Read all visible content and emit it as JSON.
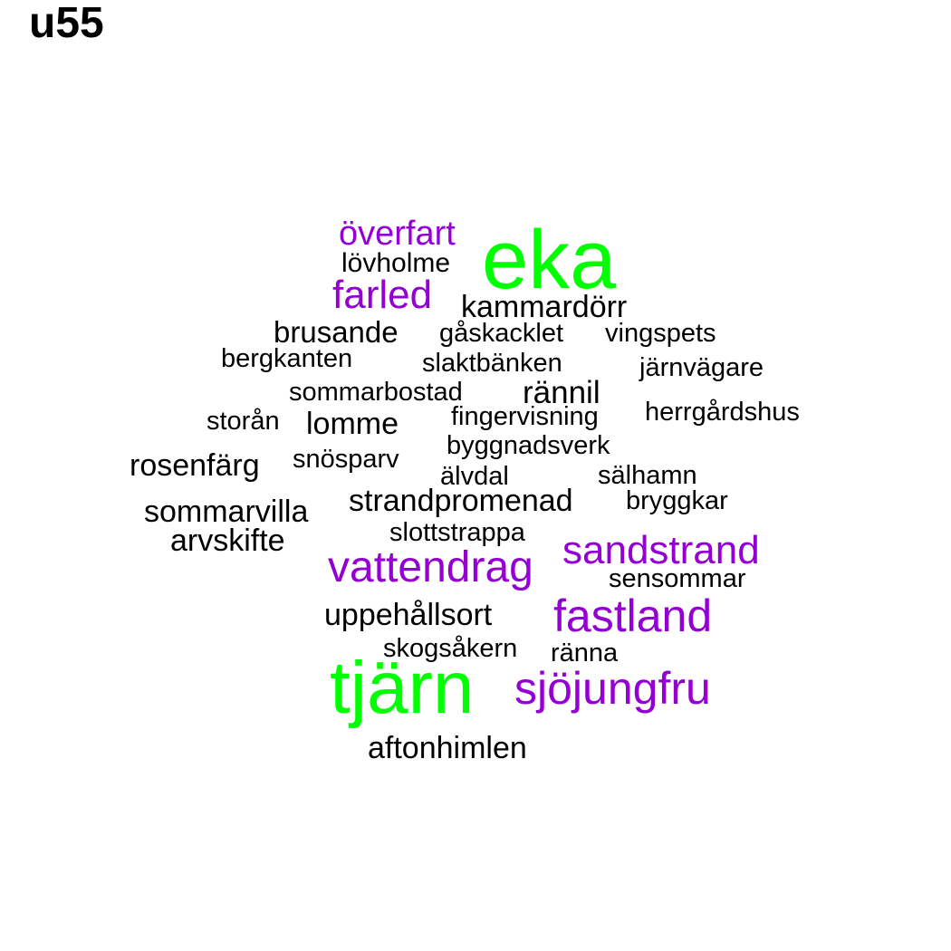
{
  "title": "u55",
  "colors": {
    "high": "#00ff00",
    "mid": "#9400d3",
    "low": "#000000"
  },
  "words": [
    {
      "text": "eka",
      "tier": "high"
    },
    {
      "text": "tjärn",
      "tier": "high"
    },
    {
      "text": "överfart",
      "tier": "mid"
    },
    {
      "text": "farled",
      "tier": "mid"
    },
    {
      "text": "vattendrag",
      "tier": "mid"
    },
    {
      "text": "sandstrand",
      "tier": "mid"
    },
    {
      "text": "fastland",
      "tier": "mid"
    },
    {
      "text": "sjöjungfru",
      "tier": "mid"
    },
    {
      "text": "lövholme",
      "tier": "low"
    },
    {
      "text": "kammardörr",
      "tier": "low"
    },
    {
      "text": "brusande",
      "tier": "low"
    },
    {
      "text": "gåskacklet",
      "tier": "low"
    },
    {
      "text": "vingspets",
      "tier": "low"
    },
    {
      "text": "bergkanten",
      "tier": "low"
    },
    {
      "text": "slaktbänken",
      "tier": "low"
    },
    {
      "text": "järnvägare",
      "tier": "low"
    },
    {
      "text": "sommarbostad",
      "tier": "low"
    },
    {
      "text": "rännil",
      "tier": "low"
    },
    {
      "text": "storån",
      "tier": "low"
    },
    {
      "text": "lomme",
      "tier": "low"
    },
    {
      "text": "fingervisning",
      "tier": "low"
    },
    {
      "text": "herrgårdshus",
      "tier": "low"
    },
    {
      "text": "byggnadsverk",
      "tier": "low"
    },
    {
      "text": "rosenfärg",
      "tier": "low"
    },
    {
      "text": "snösparv",
      "tier": "low"
    },
    {
      "text": "älvdal",
      "tier": "low"
    },
    {
      "text": "sälhamn",
      "tier": "low"
    },
    {
      "text": "strandpromenad",
      "tier": "low"
    },
    {
      "text": "bryggkar",
      "tier": "low"
    },
    {
      "text": "sommarvilla",
      "tier": "low"
    },
    {
      "text": "slottstrappa",
      "tier": "low"
    },
    {
      "text": "arvskifte",
      "tier": "low"
    },
    {
      "text": "sensommar",
      "tier": "low"
    },
    {
      "text": "uppehållsort",
      "tier": "low"
    },
    {
      "text": "skogsåkern",
      "tier": "low"
    },
    {
      "text": "ränna",
      "tier": "low"
    },
    {
      "text": "aftonhimlen",
      "tier": "low"
    }
  ]
}
